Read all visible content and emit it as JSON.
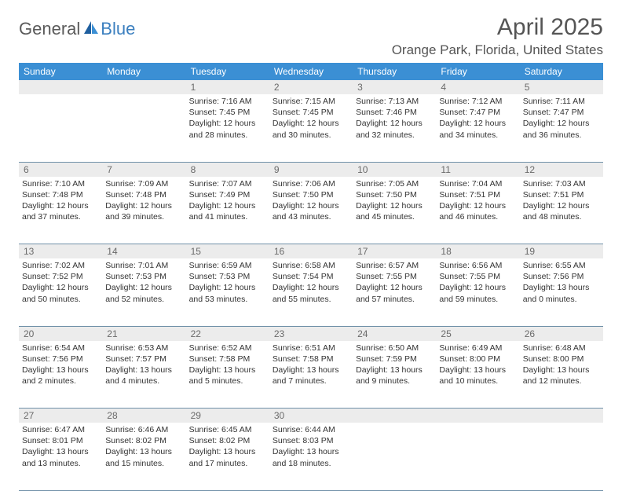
{
  "brand": {
    "part1": "General",
    "part2": "Blue"
  },
  "title": "April 2025",
  "location": "Orange Park, Florida, United States",
  "colors": {
    "header_bg": "#3b8fd4",
    "header_text": "#ffffff",
    "daynum_bg": "#ececec",
    "daynum_text": "#6a6a6a",
    "body_text": "#333333",
    "rule": "#7090a8",
    "brand_gray": "#5a5a5a",
    "brand_blue": "#3b7fbf",
    "title_gray": "#555555"
  },
  "weekdays": [
    "Sunday",
    "Monday",
    "Tuesday",
    "Wednesday",
    "Thursday",
    "Friday",
    "Saturday"
  ],
  "weeks": [
    {
      "nums": [
        "",
        "",
        "1",
        "2",
        "3",
        "4",
        "5"
      ],
      "cells": [
        null,
        null,
        {
          "sunrise": "7:16 AM",
          "sunset": "7:45 PM",
          "daylight": "12 hours and 28 minutes."
        },
        {
          "sunrise": "7:15 AM",
          "sunset": "7:45 PM",
          "daylight": "12 hours and 30 minutes."
        },
        {
          "sunrise": "7:13 AM",
          "sunset": "7:46 PM",
          "daylight": "12 hours and 32 minutes."
        },
        {
          "sunrise": "7:12 AM",
          "sunset": "7:47 PM",
          "daylight": "12 hours and 34 minutes."
        },
        {
          "sunrise": "7:11 AM",
          "sunset": "7:47 PM",
          "daylight": "12 hours and 36 minutes."
        }
      ]
    },
    {
      "nums": [
        "6",
        "7",
        "8",
        "9",
        "10",
        "11",
        "12"
      ],
      "cells": [
        {
          "sunrise": "7:10 AM",
          "sunset": "7:48 PM",
          "daylight": "12 hours and 37 minutes."
        },
        {
          "sunrise": "7:09 AM",
          "sunset": "7:48 PM",
          "daylight": "12 hours and 39 minutes."
        },
        {
          "sunrise": "7:07 AM",
          "sunset": "7:49 PM",
          "daylight": "12 hours and 41 minutes."
        },
        {
          "sunrise": "7:06 AM",
          "sunset": "7:50 PM",
          "daylight": "12 hours and 43 minutes."
        },
        {
          "sunrise": "7:05 AM",
          "sunset": "7:50 PM",
          "daylight": "12 hours and 45 minutes."
        },
        {
          "sunrise": "7:04 AM",
          "sunset": "7:51 PM",
          "daylight": "12 hours and 46 minutes."
        },
        {
          "sunrise": "7:03 AM",
          "sunset": "7:51 PM",
          "daylight": "12 hours and 48 minutes."
        }
      ]
    },
    {
      "nums": [
        "13",
        "14",
        "15",
        "16",
        "17",
        "18",
        "19"
      ],
      "cells": [
        {
          "sunrise": "7:02 AM",
          "sunset": "7:52 PM",
          "daylight": "12 hours and 50 minutes."
        },
        {
          "sunrise": "7:01 AM",
          "sunset": "7:53 PM",
          "daylight": "12 hours and 52 minutes."
        },
        {
          "sunrise": "6:59 AM",
          "sunset": "7:53 PM",
          "daylight": "12 hours and 53 minutes."
        },
        {
          "sunrise": "6:58 AM",
          "sunset": "7:54 PM",
          "daylight": "12 hours and 55 minutes."
        },
        {
          "sunrise": "6:57 AM",
          "sunset": "7:55 PM",
          "daylight": "12 hours and 57 minutes."
        },
        {
          "sunrise": "6:56 AM",
          "sunset": "7:55 PM",
          "daylight": "12 hours and 59 minutes."
        },
        {
          "sunrise": "6:55 AM",
          "sunset": "7:56 PM",
          "daylight": "13 hours and 0 minutes."
        }
      ]
    },
    {
      "nums": [
        "20",
        "21",
        "22",
        "23",
        "24",
        "25",
        "26"
      ],
      "cells": [
        {
          "sunrise": "6:54 AM",
          "sunset": "7:56 PM",
          "daylight": "13 hours and 2 minutes."
        },
        {
          "sunrise": "6:53 AM",
          "sunset": "7:57 PM",
          "daylight": "13 hours and 4 minutes."
        },
        {
          "sunrise": "6:52 AM",
          "sunset": "7:58 PM",
          "daylight": "13 hours and 5 minutes."
        },
        {
          "sunrise": "6:51 AM",
          "sunset": "7:58 PM",
          "daylight": "13 hours and 7 minutes."
        },
        {
          "sunrise": "6:50 AM",
          "sunset": "7:59 PM",
          "daylight": "13 hours and 9 minutes."
        },
        {
          "sunrise": "6:49 AM",
          "sunset": "8:00 PM",
          "daylight": "13 hours and 10 minutes."
        },
        {
          "sunrise": "6:48 AM",
          "sunset": "8:00 PM",
          "daylight": "13 hours and 12 minutes."
        }
      ]
    },
    {
      "nums": [
        "27",
        "28",
        "29",
        "30",
        "",
        "",
        ""
      ],
      "cells": [
        {
          "sunrise": "6:47 AM",
          "sunset": "8:01 PM",
          "daylight": "13 hours and 13 minutes."
        },
        {
          "sunrise": "6:46 AM",
          "sunset": "8:02 PM",
          "daylight": "13 hours and 15 minutes."
        },
        {
          "sunrise": "6:45 AM",
          "sunset": "8:02 PM",
          "daylight": "13 hours and 17 minutes."
        },
        {
          "sunrise": "6:44 AM",
          "sunset": "8:03 PM",
          "daylight": "13 hours and 18 minutes."
        },
        null,
        null,
        null
      ]
    }
  ]
}
